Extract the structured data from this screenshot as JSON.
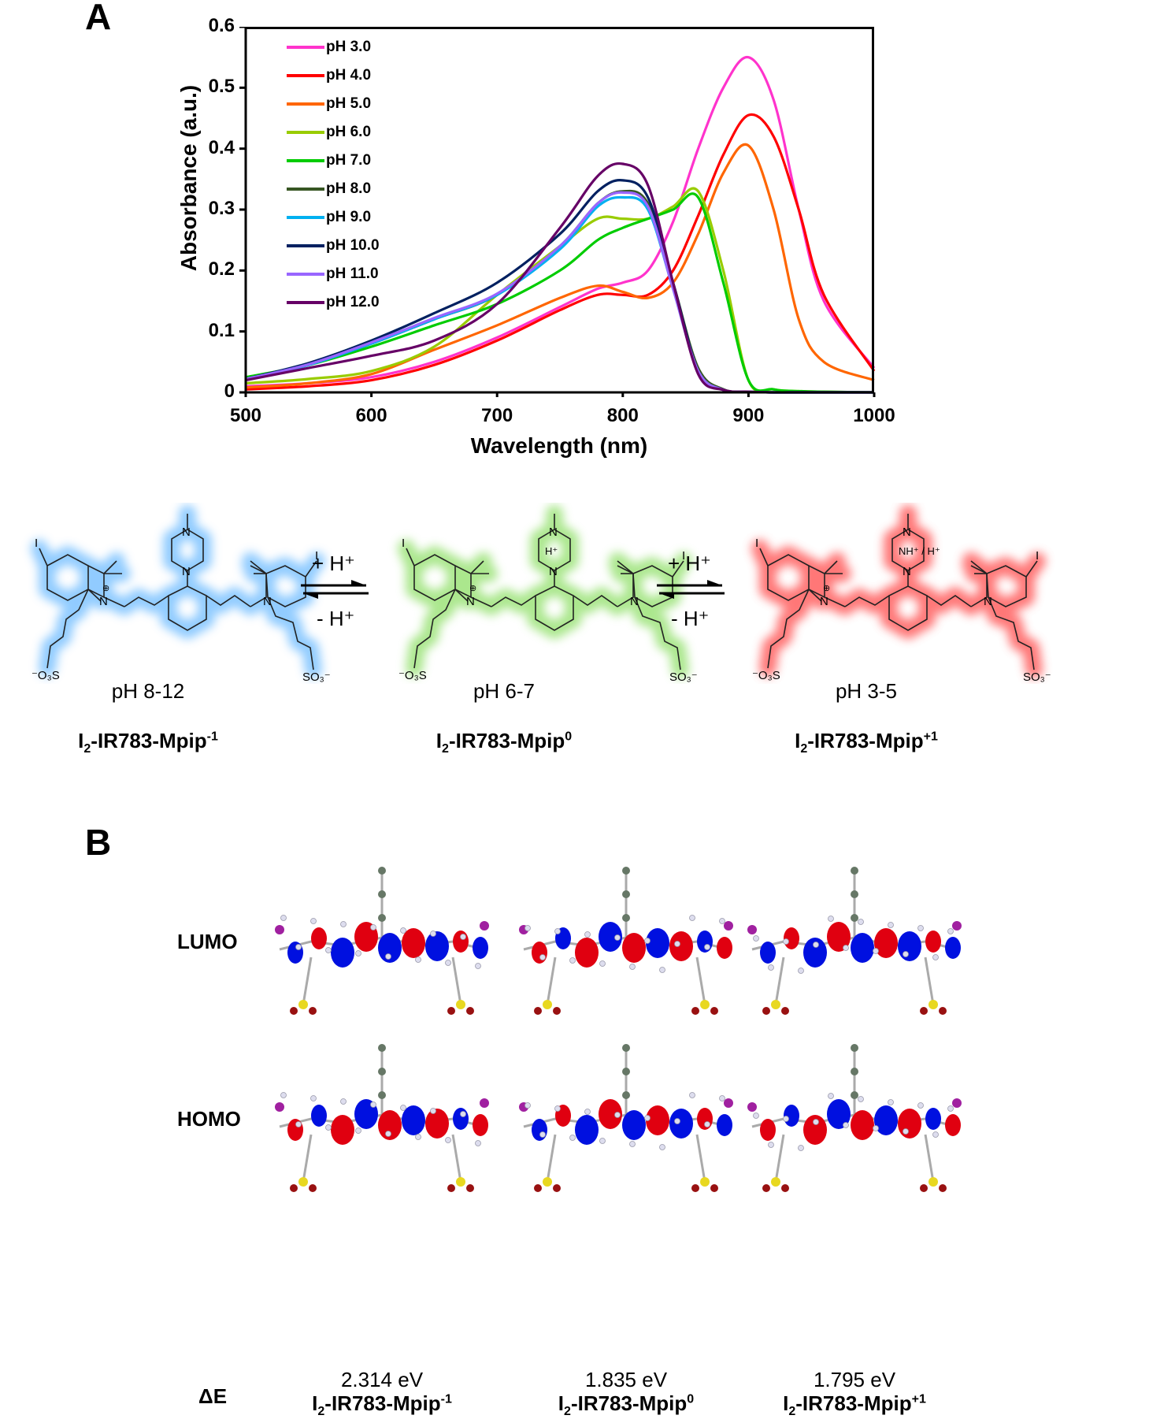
{
  "panels": {
    "a": "A",
    "b": "B"
  },
  "chart_data": {
    "type": "line",
    "title": "",
    "xlabel": "Wavelength (nm)",
    "ylabel": "Absorbance (a.u.)",
    "xlim": [
      500,
      1000
    ],
    "ylim": [
      0,
      0.6
    ],
    "xticks": [
      500,
      600,
      700,
      800,
      900,
      1000
    ],
    "yticks": [
      0,
      0.1,
      0.2,
      0.3,
      0.4,
      0.5,
      0.6
    ],
    "ytick_labels": [
      "0",
      "0.1",
      "0.2",
      "0.3",
      "0.4",
      "0.5",
      "0.6"
    ],
    "grid": false,
    "legend_position": "upper-left-inside",
    "x": [
      500,
      550,
      600,
      650,
      700,
      750,
      780,
      800,
      820,
      840,
      860,
      880,
      900,
      920,
      940,
      960,
      1000
    ],
    "series": [
      {
        "name": "pH 3.0",
        "color": "#ff33cc",
        "values": [
          0.01,
          0.015,
          0.025,
          0.05,
          0.09,
          0.14,
          0.17,
          0.18,
          0.2,
          0.28,
          0.4,
          0.5,
          0.55,
          0.48,
          0.3,
          0.15,
          0.04
        ]
      },
      {
        "name": "pH 4.0",
        "color": "#ff0000",
        "values": [
          0.005,
          0.01,
          0.02,
          0.045,
          0.085,
          0.135,
          0.16,
          0.16,
          0.16,
          0.2,
          0.29,
          0.39,
          0.455,
          0.42,
          0.3,
          0.16,
          0.035
        ]
      },
      {
        "name": "pH 5.0",
        "color": "#ff6600",
        "values": [
          0.008,
          0.015,
          0.03,
          0.07,
          0.11,
          0.155,
          0.175,
          0.165,
          0.155,
          0.18,
          0.26,
          0.36,
          0.405,
          0.3,
          0.12,
          0.05,
          0.02
        ]
      },
      {
        "name": "pH 6.0",
        "color": "#99cc00",
        "values": [
          0.015,
          0.022,
          0.035,
          0.075,
          0.16,
          0.24,
          0.285,
          0.285,
          0.285,
          0.305,
          0.33,
          0.2,
          0.02,
          0.005,
          0.002,
          0.001,
          0.0
        ]
      },
      {
        "name": "pH 7.0",
        "color": "#00cc00",
        "values": [
          0.025,
          0.045,
          0.075,
          0.11,
          0.145,
          0.2,
          0.25,
          0.27,
          0.285,
          0.3,
          0.32,
          0.18,
          0.02,
          0.005,
          0.002,
          0.001,
          0.0
        ]
      },
      {
        "name": "pH 8.0",
        "color": "#375623",
        "values": [
          0.022,
          0.045,
          0.08,
          0.12,
          0.16,
          0.24,
          0.31,
          0.33,
          0.31,
          0.18,
          0.04,
          0.005,
          0.001,
          0.0,
          0.0,
          0.0,
          0.0
        ]
      },
      {
        "name": "pH 9.0",
        "color": "#00b0f0",
        "values": [
          0.022,
          0.045,
          0.08,
          0.12,
          0.16,
          0.235,
          0.305,
          0.32,
          0.3,
          0.17,
          0.035,
          0.004,
          0.001,
          0.0,
          0.0,
          0.0,
          0.0
        ]
      },
      {
        "name": "pH 10.0",
        "color": "#002060",
        "values": [
          0.022,
          0.048,
          0.085,
          0.13,
          0.18,
          0.26,
          0.33,
          0.348,
          0.32,
          0.18,
          0.035,
          0.004,
          0.001,
          0.0,
          0.0,
          0.0,
          0.0
        ]
      },
      {
        "name": "pH 11.0",
        "color": "#9966ff",
        "values": [
          0.022,
          0.046,
          0.082,
          0.122,
          0.162,
          0.24,
          0.31,
          0.328,
          0.305,
          0.17,
          0.035,
          0.004,
          0.001,
          0.0,
          0.0,
          0.0,
          0.0
        ]
      },
      {
        "name": "pH 12.0",
        "color": "#660066",
        "values": [
          0.02,
          0.04,
          0.06,
          0.085,
          0.145,
          0.27,
          0.355,
          0.375,
          0.34,
          0.18,
          0.03,
          0.004,
          0.001,
          0.0,
          0.0,
          0.0,
          0.0
        ]
      }
    ]
  },
  "scheme": {
    "forward_label": "+ H⁺",
    "reverse_label": "- H⁺",
    "species": [
      {
        "ph": "pH 8-12",
        "name_prefix": "I",
        "name_sub": "2",
        "name_main": "-IR783-Mpip",
        "name_sup": "-1",
        "glow": "#7ec3ff",
        "piperazine_label": ""
      },
      {
        "ph": "pH 6-7",
        "name_prefix": "I",
        "name_sub": "2",
        "name_main": "-IR783-Mpip",
        "name_sup": "0",
        "glow": "#9de37a",
        "piperazine_label": "H⁺"
      },
      {
        "ph": "pH 3-5",
        "name_prefix": "I",
        "name_sub": "2",
        "name_main": "-IR783-Mpip",
        "name_sup": "+1",
        "glow": "#ff6060",
        "piperazine_label": "NH⁺ / H⁺"
      }
    ]
  },
  "orbitals": {
    "lumo_label": "LUMO",
    "homo_label": "HOMO",
    "delta_label": "ΔE",
    "columns": [
      {
        "energy": "2.314 eV",
        "name_prefix": "I",
        "name_sub": "2",
        "name_main": "-IR783-Mpip",
        "name_sup": "-1"
      },
      {
        "energy": "1.835 eV",
        "name_prefix": "I",
        "name_sub": "2",
        "name_main": "-IR783-Mpip",
        "name_sup": "0"
      },
      {
        "energy": "1.795 eV",
        "name_prefix": "I",
        "name_sub": "2",
        "name_main": "-IR783-Mpip",
        "name_sup": "+1"
      }
    ]
  }
}
